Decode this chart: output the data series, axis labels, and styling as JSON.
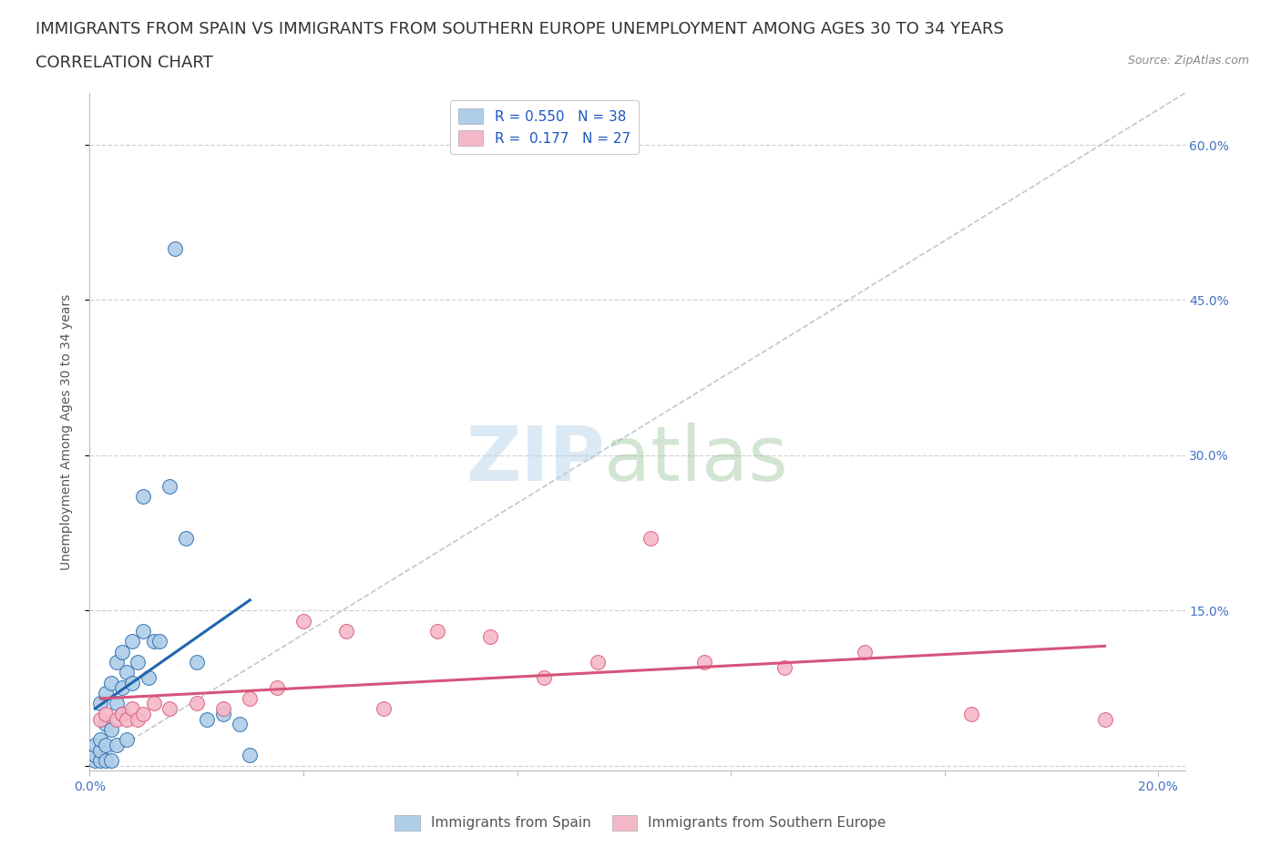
{
  "title_line1": "IMMIGRANTS FROM SPAIN VS IMMIGRANTS FROM SOUTHERN EUROPE UNEMPLOYMENT AMONG AGES 30 TO 34 YEARS",
  "title_line2": "CORRELATION CHART",
  "source_text": "Source: ZipAtlas.com",
  "ylabel": "Unemployment Among Ages 30 to 34 years",
  "xlim": [
    0.0,
    0.205
  ],
  "ylim": [
    -0.005,
    0.65
  ],
  "x_ticks": [
    0.0,
    0.04,
    0.08,
    0.12,
    0.16,
    0.2
  ],
  "y_ticks": [
    0.0,
    0.15,
    0.3,
    0.45,
    0.6
  ],
  "spain_color": "#aecde8",
  "spain_color_line": "#2166ac",
  "southern_color": "#f4b8c8",
  "southern_color_line": "#d6547a",
  "spain_R": 0.55,
  "spain_N": 38,
  "southern_R": 0.177,
  "southern_N": 27,
  "spain_x": [
    0.001,
    0.001,
    0.001,
    0.002,
    0.002,
    0.002,
    0.002,
    0.003,
    0.003,
    0.003,
    0.003,
    0.004,
    0.004,
    0.004,
    0.005,
    0.005,
    0.005,
    0.006,
    0.006,
    0.006,
    0.007,
    0.007,
    0.008,
    0.008,
    0.009,
    0.01,
    0.01,
    0.011,
    0.012,
    0.013,
    0.015,
    0.016,
    0.018,
    0.02,
    0.022,
    0.025,
    0.028,
    0.03
  ],
  "spain_y": [
    0.005,
    0.01,
    0.02,
    0.005,
    0.015,
    0.025,
    0.06,
    0.005,
    0.02,
    0.04,
    0.07,
    0.005,
    0.035,
    0.08,
    0.02,
    0.06,
    0.1,
    0.05,
    0.075,
    0.11,
    0.025,
    0.09,
    0.08,
    0.12,
    0.1,
    0.13,
    0.26,
    0.085,
    0.12,
    0.12,
    0.27,
    0.5,
    0.22,
    0.1,
    0.045,
    0.05,
    0.04,
    0.01
  ],
  "southern_x": [
    0.002,
    0.003,
    0.005,
    0.006,
    0.007,
    0.008,
    0.009,
    0.01,
    0.012,
    0.015,
    0.02,
    0.025,
    0.03,
    0.035,
    0.04,
    0.048,
    0.055,
    0.065,
    0.075,
    0.085,
    0.095,
    0.105,
    0.115,
    0.13,
    0.145,
    0.165,
    0.19
  ],
  "southern_y": [
    0.045,
    0.05,
    0.045,
    0.05,
    0.045,
    0.055,
    0.045,
    0.05,
    0.06,
    0.055,
    0.06,
    0.055,
    0.065,
    0.075,
    0.14,
    0.13,
    0.055,
    0.13,
    0.125,
    0.085,
    0.1,
    0.22,
    0.1,
    0.095,
    0.11,
    0.05,
    0.045
  ],
  "background_color": "#ffffff",
  "grid_color": "#c8c8c8",
  "title_color": "#333333",
  "tick_color": "#4472c4",
  "label_color": "#555555",
  "title_fontsize": 13,
  "subtitle_fontsize": 13,
  "axis_label_fontsize": 10,
  "tick_fontsize": 10,
  "legend_fontsize": 11,
  "source_fontsize": 9
}
